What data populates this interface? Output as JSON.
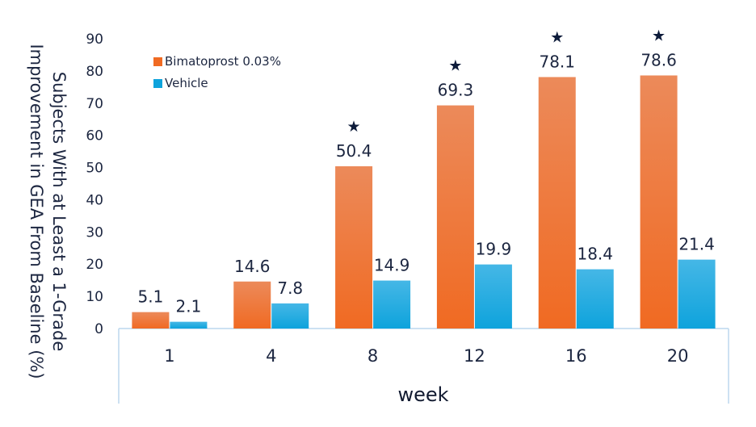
{
  "chart_data": {
    "type": "bar",
    "title": "",
    "xlabel": "week",
    "ylabel": "Subjects With at Least a 1-Grade Improvement in GEA From Baseline (%)",
    "ylabel_lines": [
      "Subjects With at Least a 1-Grade",
      "Improvement in GEA From Baseline (%)"
    ],
    "categories": [
      "1",
      "4",
      "8",
      "12",
      "16",
      "20"
    ],
    "series": [
      {
        "name": "Bimatoprost 0.03%",
        "values": [
          5.1,
          14.6,
          50.4,
          69.3,
          78.1,
          78.6
        ],
        "labels": [
          "5.1",
          "14.6",
          "50.4",
          "69.3",
          "78.1",
          "78.6"
        ],
        "color": "#f06a22",
        "color_light": "#ec8a5a"
      },
      {
        "name": "Vehicle",
        "values": [
          2.1,
          7.8,
          14.9,
          19.9,
          18.4,
          21.4
        ],
        "labels": [
          "2.1",
          "7.8",
          "14.9",
          "19.9",
          "18.4",
          "21.4"
        ],
        "color": "#0ea3dc",
        "color_light": "#45b7e6"
      }
    ],
    "ylim": [
      0,
      90
    ],
    "yticks": [
      "0",
      "10",
      "20",
      "30",
      "40",
      "50",
      "60",
      "70",
      "80",
      "90"
    ],
    "significance_markers": [
      {
        "category": "8",
        "symbol": "★"
      },
      {
        "category": "12",
        "symbol": "★"
      },
      {
        "category": "16",
        "symbol": "★"
      },
      {
        "category": "20",
        "symbol": "★"
      }
    ],
    "legend_position": "top-left",
    "grid": false,
    "colors": {
      "axis": "#1f2a4a",
      "text": "#1c2640",
      "x_axis_box": "#bcd7ee"
    }
  }
}
